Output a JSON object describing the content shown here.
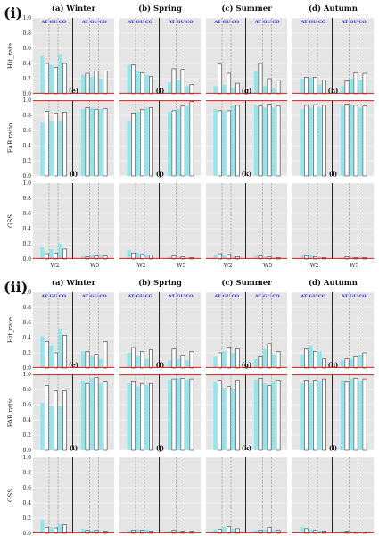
{
  "chart_data": {
    "type": "bar",
    "sections": [
      {
        "label": "(i)",
        "seasons": [
          "(a) Winter",
          "(b) Spring",
          "(c) Summer",
          "(d) Autumn"
        ],
        "group_labels": [
          "AT",
          "GU",
          "CO"
        ],
        "x_labels": [
          "W2",
          "W5"
        ],
        "metrics": [
          {
            "ylabel": "Hit_rate",
            "ylim": [
              0,
              1
            ],
            "yticks": [
              "0.0",
              "0.2",
              "0.4",
              "0.6",
              "0.8",
              "1.0"
            ],
            "tags": [
              "(a) Winter",
              "(b) Spring",
              "(c) Summer",
              "(d) Autumn"
            ],
            "reference_line": 0.0,
            "values": [
              {
                "ref": [
                  0.5,
                  0.38,
                  0.52,
                  0.25,
                  0.22,
                  0.2
                ],
                "hist": [
                  0.4,
                  0.35,
                  0.4,
                  0.27,
                  0.3,
                  0.3
                ]
              },
              {
                "ref": [
                  0.38,
                  0.3,
                  0.25,
                  0.15,
                  0.18,
                  0.1
                ],
                "hist": [
                  0.38,
                  0.28,
                  0.23,
                  0.33,
                  0.32,
                  0.12
                ]
              },
              {
                "ref": [
                  0.1,
                  0.12,
                  0.08,
                  0.3,
                  0.1,
                  0.08
                ],
                "hist": [
                  0.39,
                  0.27,
                  0.14,
                  0.4,
                  0.2,
                  0.18
                ]
              },
              {
                "ref": [
                  0.2,
                  0.22,
                  0.12,
                  0.1,
                  0.2,
                  0.18
                ],
                "hist": [
                  0.22,
                  0.22,
                  0.18,
                  0.17,
                  0.28,
                  0.27
                ]
              }
            ]
          },
          {
            "ylabel": "FAR ratio",
            "ylim": [
              0,
              1
            ],
            "yticks": [
              "0.0",
              "0.2",
              "0.4",
              "0.6",
              "0.8",
              "1.0"
            ],
            "tags": [
              "(e)",
              "(f)",
              "(g)",
              "(h)"
            ],
            "reference_line": 1.0,
            "values": [
              {
                "ref": [
                  0.7,
                  0.72,
                  0.72,
                  0.88,
                  0.9,
                  0.88
                ],
                "hist": [
                  0.85,
                  0.82,
                  0.84,
                  0.9,
                  0.88,
                  0.89
                ]
              },
              {
                "ref": [
                  0.72,
                  0.85,
                  0.9,
                  0.85,
                  0.88,
                  0.92
                ],
                "hist": [
                  0.82,
                  0.88,
                  0.9,
                  0.86,
                  0.92,
                  0.98
                ]
              },
              {
                "ref": [
                  0.88,
                  0.86,
                  0.92,
                  0.93,
                  0.9,
                  0.9
                ],
                "hist": [
                  0.86,
                  0.86,
                  0.93,
                  0.92,
                  0.95,
                  0.92
                ]
              },
              {
                "ref": [
                  0.88,
                  0.9,
                  0.9,
                  0.92,
                  0.93,
                  0.9
                ],
                "hist": [
                  0.93,
                  0.94,
                  0.93,
                  0.95,
                  0.93,
                  0.92
                ]
              }
            ]
          },
          {
            "ylabel": "GSS",
            "ylim": [
              0,
              1
            ],
            "yticks": [
              "0.0",
              "0.2",
              "0.4",
              "0.6",
              "0.8",
              "1.0"
            ],
            "tags": [
              "(i)",
              "(j)",
              "(k)",
              "(l)"
            ],
            "reference_line": 0.0,
            "values": [
              {
                "ref": [
                  0.15,
                  0.13,
                  0.2,
                  0.04,
                  0.05,
                  0.04
                ],
                "hist": [
                  0.07,
                  0.08,
                  0.13,
                  0.03,
                  0.04,
                  0.04
                ]
              },
              {
                "ref": [
                  0.12,
                  0.08,
                  0.06,
                  0.03,
                  0.03,
                  0.02
                ],
                "hist": [
                  0.08,
                  0.06,
                  0.05,
                  0.04,
                  0.03,
                  0.02
                ]
              },
              {
                "ref": [
                  0.05,
                  0.06,
                  0.03,
                  0.04,
                  0.03,
                  0.02
                ],
                "hist": [
                  0.07,
                  0.06,
                  0.03,
                  0.04,
                  0.03,
                  0.02
                ]
              },
              {
                "ref": [
                  0.04,
                  0.06,
                  0.03,
                  0.02,
                  0.03,
                  0.03
                ],
                "hist": [
                  0.04,
                  0.03,
                  0.02,
                  0.03,
                  0.02,
                  0.02
                ]
              }
            ]
          }
        ]
      },
      {
        "label": "(ii)",
        "seasons": [
          "(a) Winter",
          "(b) Spring",
          "(c) Summer",
          "(d) Autumn"
        ],
        "group_labels": [
          "AT",
          "GU",
          "CO"
        ],
        "x_labels": [
          "W2",
          "W5"
        ],
        "metrics": [
          {
            "ylabel": "Hit_rate",
            "ylim": [
              0,
              1
            ],
            "yticks": [
              "0.0",
              "0.2",
              "0.4",
              "0.6",
              "0.8",
              "1.0"
            ],
            "tags": [
              "(a) Winter",
              "(b) Spring",
              "(c) Summer",
              "(d) Autumn"
            ],
            "reference_line": 0.0,
            "values": [
              {
                "ref": [
                  0.42,
                  0.3,
                  0.52,
                  0.22,
                  0.15,
                  0.12
                ],
                "hist": [
                  0.35,
                  0.2,
                  0.43,
                  0.22,
                  0.18,
                  0.35
                ]
              },
              {
                "ref": [
                  0.2,
                  0.15,
                  0.12,
                  0.1,
                  0.12,
                  0.1
                ],
                "hist": [
                  0.27,
                  0.22,
                  0.24,
                  0.25,
                  0.17,
                  0.22
                ]
              },
              {
                "ref": [
                  0.15,
                  0.22,
                  0.2,
                  0.12,
                  0.25,
                  0.18
                ],
                "hist": [
                  0.2,
                  0.28,
                  0.25,
                  0.15,
                  0.32,
                  0.22
                ]
              },
              {
                "ref": [
                  0.18,
                  0.3,
                  0.22,
                  0.1,
                  0.12,
                  0.18
                ],
                "hist": [
                  0.25,
                  0.22,
                  0.12,
                  0.12,
                  0.15,
                  0.2
                ]
              }
            ]
          },
          {
            "ylabel": "FAR ratio",
            "ylim": [
              0,
              1
            ],
            "yticks": [
              "0.0",
              "0.2",
              "0.4",
              "0.6",
              "0.8",
              "1.0"
            ],
            "tags": [
              "(e)",
              "(f)",
              "(g)",
              "(h)"
            ],
            "reference_line": 1.0,
            "values": [
              {
                "ref": [
                  0.62,
                  0.58,
                  0.58,
                  0.92,
                  0.95,
                  0.88
                ],
                "hist": [
                  0.85,
                  0.78,
                  0.78,
                  0.88,
                  0.96,
                  0.9
                ]
              },
              {
                "ref": [
                  0.88,
                  0.84,
                  0.86,
                  0.93,
                  0.95,
                  0.93
                ],
                "hist": [
                  0.9,
                  0.88,
                  0.88,
                  0.94,
                  0.95,
                  0.94
                ]
              },
              {
                "ref": [
                  0.9,
                  0.82,
                  0.8,
                  0.93,
                  0.88,
                  0.9
                ],
                "hist": [
                  0.92,
                  0.84,
                  0.92,
                  0.95,
                  0.85,
                  0.92
                ]
              },
              {
                "ref": [
                  0.88,
                  0.88,
                  0.92,
                  0.92,
                  0.94,
                  0.92
                ],
                "hist": [
                  0.92,
                  0.92,
                  0.94,
                  0.9,
                  0.95,
                  0.94
                ]
              }
            ]
          },
          {
            "ylabel": "GSS",
            "ylim": [
              0,
              1
            ],
            "yticks": [
              "0.0",
              "0.2",
              "0.4",
              "0.6",
              "0.8",
              "1.0"
            ],
            "tags": [
              "(i)",
              "(j)",
              "(k)",
              "(l)"
            ],
            "reference_line": 0.0,
            "values": [
              {
                "ref": [
                  0.18,
                  0.08,
                  0.12,
                  0.06,
                  0.04,
                  0.03
                ],
                "hist": [
                  0.08,
                  0.07,
                  0.11,
                  0.04,
                  0.04,
                  0.03
                ]
              },
              {
                "ref": [
                  0.04,
                  0.05,
                  0.05,
                  0.03,
                  0.03,
                  0.02
                ],
                "hist": [
                  0.04,
                  0.04,
                  0.03,
                  0.04,
                  0.03,
                  0.03
                ]
              },
              {
                "ref": [
                  0.05,
                  0.08,
                  0.06,
                  0.04,
                  0.05,
                  0.04
                ],
                "hist": [
                  0.05,
                  0.09,
                  0.06,
                  0.04,
                  0.08,
                  0.04
                ]
              },
              {
                "ref": [
                  0.08,
                  0.05,
                  0.04,
                  0.03,
                  0.02,
                  0.02
                ],
                "hist": [
                  0.06,
                  0.04,
                  0.03,
                  0.03,
                  0.02,
                  0.02
                ]
              }
            ]
          }
        ]
      }
    ]
  },
  "colors": {
    "panel_background": "#e5e5e5",
    "reference_bar": "#7fe8ee",
    "hist_bar_edge": "#111111",
    "reference_line": "#e31a1c",
    "group_label": "#1f1fd6"
  }
}
